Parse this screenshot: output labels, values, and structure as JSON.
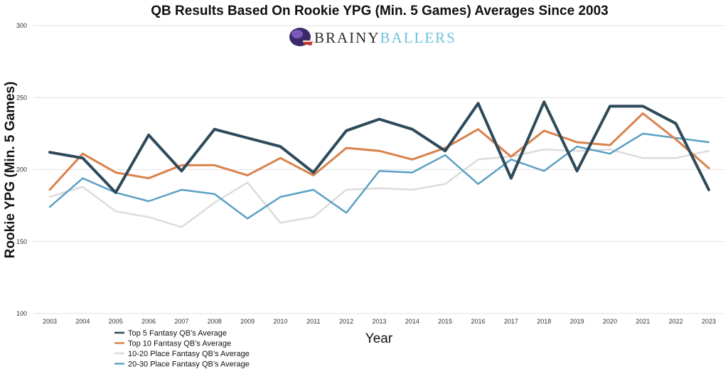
{
  "logo": {
    "part1": "BRAINY",
    "part2": "BALLERS",
    "color1": "#2b2b2b",
    "color2": "#6cc3dc"
  },
  "chart_data": {
    "type": "line",
    "title": "QB Results Based On Rookie YPG (Min. 5 Games) Averages Since 2003",
    "xlabel": "Year",
    "ylabel": "Rookie YPG (Min. 5 Games)",
    "ylim": [
      100,
      300
    ],
    "yticks": [
      100,
      150,
      200,
      250,
      300
    ],
    "grid": true,
    "legend_position": "bottom-center",
    "categories": [
      "2003",
      "2004",
      "2005",
      "2006",
      "2007",
      "2008",
      "2009",
      "2010",
      "2011",
      "2012",
      "2013",
      "2014",
      "2015",
      "2016",
      "2017",
      "2018",
      "2019",
      "2020",
      "2021",
      "2022",
      "2023"
    ],
    "series": [
      {
        "name": "Top 5 Fantasy QB’s Average",
        "color": "#2e4a5b",
        "values": [
          212,
          208,
          184,
          224,
          199,
          228,
          222,
          216,
          198,
          227,
          235,
          228,
          213,
          246,
          194,
          247,
          199,
          244,
          244,
          232,
          186
        ]
      },
      {
        "name": "Top 10 Fantasy QB’s Average",
        "color": "#d9824b",
        "values": [
          186,
          211,
          198,
          194,
          203,
          203,
          196,
          208,
          196,
          215,
          213,
          207,
          215,
          228,
          209,
          227,
          219,
          217,
          239,
          221,
          201
        ]
      },
      {
        "name": "10-20 Place Fantasy QB’s  Average",
        "color": "#dcdcdc",
        "values": [
          181,
          188,
          171,
          167,
          160,
          177,
          191,
          163,
          167,
          186,
          187,
          186,
          190,
          207,
          209,
          214,
          213,
          214,
          208,
          208,
          213
        ]
      },
      {
        "name": "20-30 Place Fantasy QB’s  Average",
        "color": "#5ba0c4",
        "values": [
          174,
          194,
          184,
          178,
          186,
          183,
          166,
          181,
          186,
          170,
          199,
          198,
          210,
          190,
          207,
          199,
          216,
          211,
          225,
          222,
          219
        ]
      }
    ]
  }
}
